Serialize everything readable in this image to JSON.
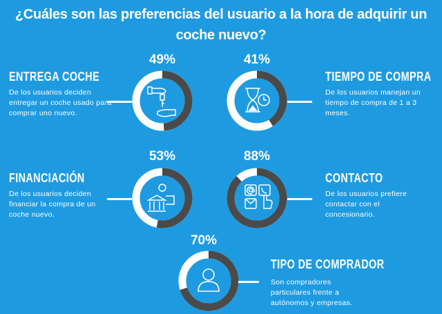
{
  "title": "¿Cuáles son las preferencias del usuario a la hora de adquirir un coche nuevo?",
  "colors": {
    "background": "#1e9be0",
    "ring_track": "#ffffff",
    "ring_value": "#4a4a4a"
  },
  "items": [
    {
      "percent": 49,
      "percent_label": "49%",
      "heading": "ENTREGA COCHE",
      "description": "De los usuarios deciden entregar un coche usado para comprar uno nuevo.",
      "icon": "hand-key-icon"
    },
    {
      "percent": 41,
      "percent_label": "41%",
      "heading": "TIEMPO DE COMPRA",
      "description": "De los usuarios manejan un tiempo de compra de 1 a 3 meses.",
      "icon": "hourglass-clock-icon"
    },
    {
      "percent": 53,
      "percent_label": "53%",
      "heading": "FINANCIACIÓN",
      "description": "De los usuarios deciden financiar la compra de un coche nuevo.",
      "icon": "bank-money-icon"
    },
    {
      "percent": 88,
      "percent_label": "88%",
      "heading": "CONTACTO",
      "description": "De los usuarios prefiere contactar con el concesionario.",
      "icon": "contact-methods-icon"
    },
    {
      "percent": 70,
      "percent_label": "70%",
      "heading": "TIPO DE COMPRADOR",
      "description": "Son compradores particulares frente a autónomos y empresas.",
      "icon": "user-icon"
    }
  ]
}
